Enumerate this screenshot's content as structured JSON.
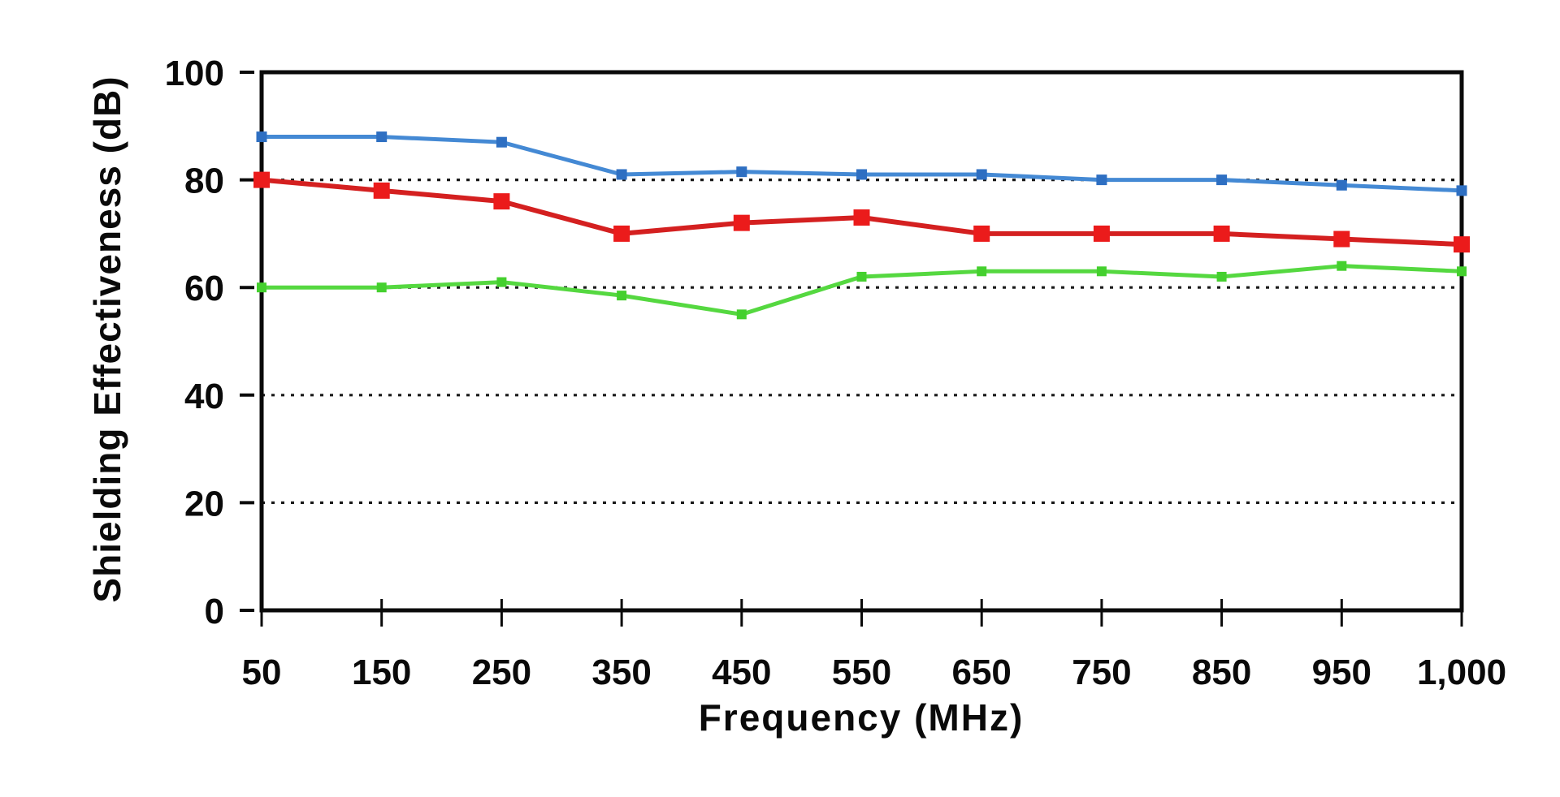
{
  "page": {
    "background_color": "#ffffff"
  },
  "chart_data": {
    "type": "line",
    "title": "",
    "xlabel": "Frequency (MHz)",
    "ylabel": "Shielding Effectiveness (dB)",
    "categories": [
      "50",
      "150",
      "250",
      "350",
      "450",
      "550",
      "650",
      "750",
      "850",
      "950",
      "1,000"
    ],
    "y_ticks": [
      0,
      20,
      40,
      60,
      80,
      100
    ],
    "ylim": [
      0,
      100
    ],
    "grid": "horizontal-dotted",
    "gridline_values": [
      20,
      40,
      60,
      80
    ],
    "legend": "none",
    "axis_color": "#0a0a0a",
    "grid_color": "#1a1a1a",
    "plot_border": "full-box",
    "series": [
      {
        "name": "series-blue",
        "color": "#4489d4",
        "marker_color": "#2e6fc2",
        "marker": "square",
        "marker_size": 13,
        "line_width": 5,
        "values": [
          88,
          88,
          87,
          81,
          81.5,
          81,
          81,
          80,
          80,
          79,
          78
        ]
      },
      {
        "name": "series-red",
        "color": "#d42020",
        "marker_color": "#eb1b1b",
        "marker": "square",
        "marker_size": 20,
        "line_width": 6,
        "values": [
          80,
          78,
          76,
          70,
          72,
          73,
          70,
          70,
          70,
          69,
          68
        ]
      },
      {
        "name": "series-green",
        "color": "#55d840",
        "marker_color": "#44d02e",
        "marker": "square",
        "marker_size": 12,
        "line_width": 5,
        "values": [
          60,
          60,
          61,
          58.5,
          55,
          62,
          63,
          63,
          62,
          64,
          63
        ]
      }
    ]
  }
}
